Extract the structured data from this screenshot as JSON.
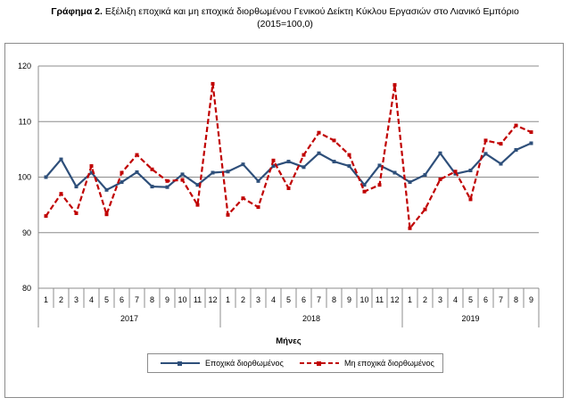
{
  "title": {
    "bold": "Γράφημα 2.",
    "line1": " Εξέλιξη εποχικά και μη εποχικά διορθωμένου Γενικού Δείκτη Κύκλου Εργασιών στο Λιανικό Εμπόριο",
    "line2": "(2015=100,0)"
  },
  "chart_data": {
    "type": "line",
    "xlabel": "Μήνες",
    "ylabel": "",
    "ylim": [
      80,
      120
    ],
    "yticks": [
      80,
      90,
      100,
      110,
      120
    ],
    "grid": true,
    "legend_position": "bottom",
    "categories": [
      "1",
      "2",
      "3",
      "4",
      "5",
      "6",
      "7",
      "8",
      "9",
      "10",
      "11",
      "12",
      "1",
      "2",
      "3",
      "4",
      "5",
      "6",
      "7",
      "8",
      "9",
      "10",
      "11",
      "12",
      "1",
      "2",
      "3",
      "4",
      "5",
      "6",
      "7",
      "8",
      "9"
    ],
    "year_groups": [
      {
        "label": "2017",
        "count": 12
      },
      {
        "label": "2018",
        "count": 12
      },
      {
        "label": "2019",
        "count": 9
      }
    ],
    "series": [
      {
        "name": "Εποχικά διορθωμένος",
        "color": "#2e4f7a",
        "style": "solid",
        "values": [
          100.0,
          103.2,
          98.3,
          100.8,
          97.7,
          99.1,
          100.9,
          98.3,
          98.2,
          100.5,
          98.6,
          100.8,
          101.0,
          102.3,
          99.3,
          102.0,
          102.8,
          101.8,
          104.3,
          102.8,
          102.0,
          98.6,
          102.1,
          100.8,
          99.1,
          100.4,
          104.3,
          100.6,
          101.2,
          104.2,
          102.4,
          104.9,
          106.1
        ]
      },
      {
        "name": "Μη εποχικά διορθωμένος",
        "color": "#c00000",
        "style": "dashed",
        "values": [
          93.0,
          97.0,
          93.5,
          102.0,
          93.3,
          100.8,
          104.0,
          101.4,
          99.3,
          99.5,
          95.0,
          116.8,
          93.2,
          96.2,
          94.6,
          103.0,
          98.0,
          104.0,
          108.0,
          106.6,
          104.0,
          97.4,
          98.6,
          116.6,
          90.8,
          94.2,
          99.6,
          101.0,
          96.0,
          106.6,
          106.0,
          109.3,
          108.1
        ]
      }
    ]
  }
}
